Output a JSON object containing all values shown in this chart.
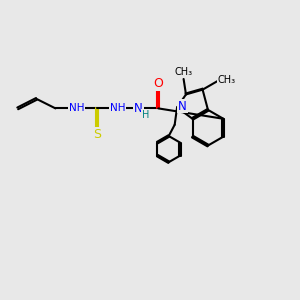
{
  "bg_color": "#e8e8e8",
  "bond_color": "#000000",
  "N_color": "#0000ff",
  "O_color": "#ff0000",
  "S_color": "#cccc00",
  "H_color": "#008080",
  "C_color": "#000000",
  "line_width": 1.5,
  "figsize": [
    3.0,
    3.0
  ],
  "dpi": 100,
  "xlim": [
    0,
    10
  ],
  "ylim": [
    0,
    10
  ]
}
